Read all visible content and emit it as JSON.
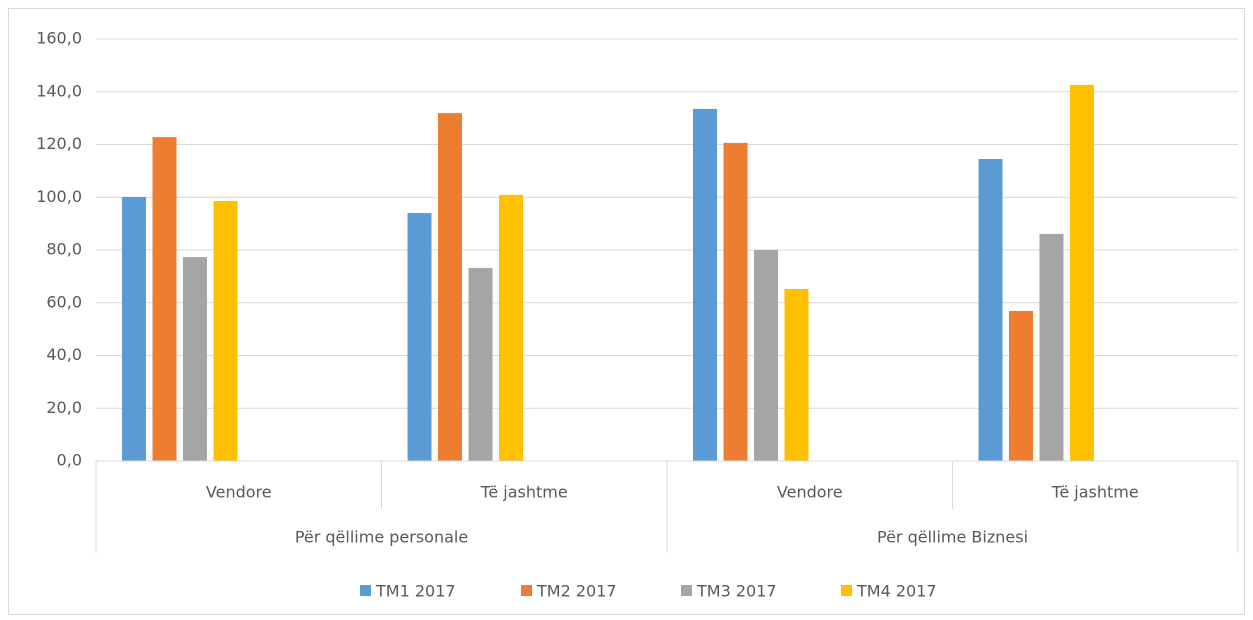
{
  "chart_data": {
    "type": "bar",
    "category_groups": [
      {
        "name": "Për qëllime personale",
        "categories": [
          "Vendore",
          "Të jashtme"
        ]
      },
      {
        "name": "Për qëllime Biznesi",
        "categories": [
          "Vendore",
          "Të jashtme"
        ]
      }
    ],
    "series": [
      {
        "name": "TM1 2017",
        "color": "#5b9bd5",
        "values": [
          100.1,
          94.0,
          133.5,
          114.5
        ]
      },
      {
        "name": "TM2 2017",
        "color": "#ed7d31",
        "values": [
          122.8,
          131.9,
          120.6,
          56.9
        ]
      },
      {
        "name": "TM3 2017",
        "color": "#a5a5a5",
        "values": [
          77.3,
          73.2,
          80.0,
          86.1
        ]
      },
      {
        "name": "TM4 2017",
        "color": "#ffc000",
        "values": [
          98.6,
          100.9,
          65.2,
          142.6
        ]
      }
    ],
    "ylim": [
      0,
      160
    ],
    "yticks": [
      {
        "value": 0,
        "label": "0,0"
      },
      {
        "value": 20,
        "label": "20,0"
      },
      {
        "value": 40,
        "label": "40,0"
      },
      {
        "value": 60,
        "label": "60,0"
      },
      {
        "value": 80,
        "label": "80,0"
      },
      {
        "value": 100,
        "label": "100,0"
      },
      {
        "value": 120,
        "label": "120,0"
      },
      {
        "value": 140,
        "label": "140,0"
      },
      {
        "value": 160,
        "label": "160,0"
      }
    ],
    "grid": true,
    "legend": "bottom"
  }
}
